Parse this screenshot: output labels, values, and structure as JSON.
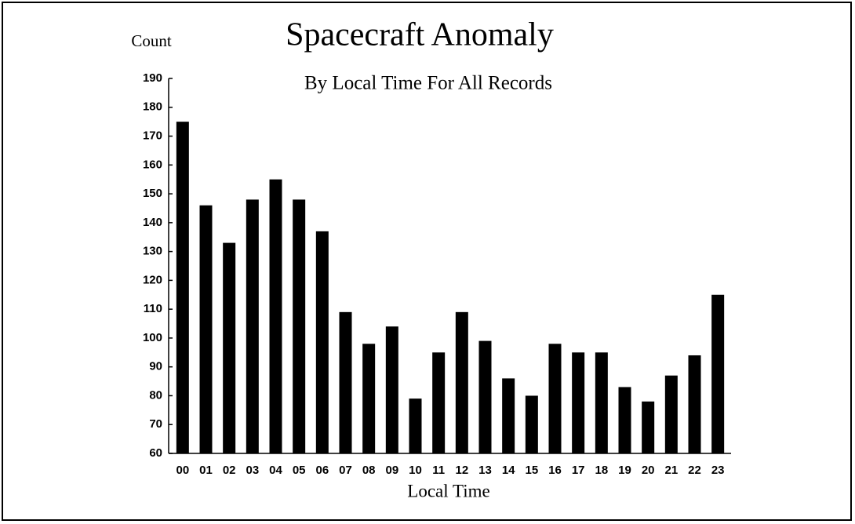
{
  "chart_data": {
    "type": "bar",
    "title": "Spacecraft Anomaly",
    "subtitle": "By Local Time For All Records",
    "y_label": "Count",
    "x_label": "Local Time",
    "categories": [
      "00",
      "01",
      "02",
      "03",
      "04",
      "05",
      "06",
      "07",
      "08",
      "09",
      "10",
      "11",
      "12",
      "13",
      "14",
      "15",
      "16",
      "17",
      "18",
      "19",
      "20",
      "21",
      "22",
      "23"
    ],
    "values": [
      175,
      146,
      133,
      148,
      155,
      148,
      137,
      109,
      98,
      104,
      79,
      95,
      109,
      99,
      86,
      80,
      98,
      95,
      95,
      83,
      78,
      87,
      94,
      115
    ],
    "color": "#000000",
    "ylim": [
      60,
      190
    ],
    "yticks": [
      60,
      70,
      80,
      90,
      100,
      110,
      120,
      130,
      140,
      150,
      160,
      170,
      180,
      190
    ],
    "grid": false
  }
}
